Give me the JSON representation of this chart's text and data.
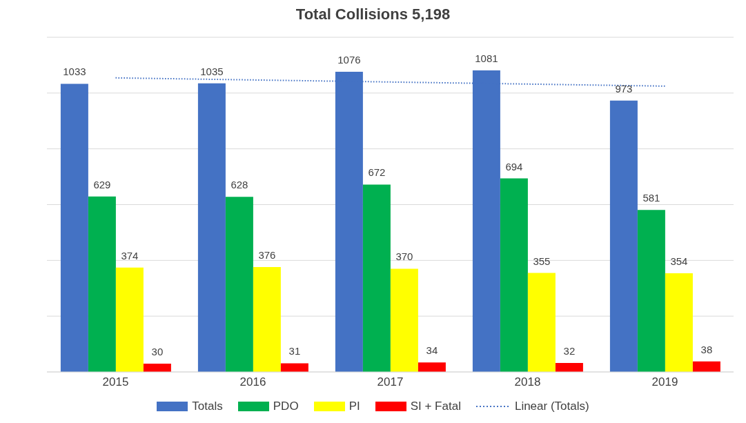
{
  "chart_data": {
    "type": "bar",
    "title": "Total Collisions 5,198",
    "categories": [
      "2015",
      "2016",
      "2017",
      "2018",
      "2019"
    ],
    "series": [
      {
        "name": "Totals",
        "color": "#4472c4",
        "values": [
          1033,
          1035,
          1076,
          1081,
          973
        ],
        "value_labels": [
          "1033",
          "1035",
          "1076",
          "1081",
          "973"
        ]
      },
      {
        "name": "PDO",
        "color": "#00b050",
        "values": [
          629,
          628,
          672,
          694,
          581
        ],
        "value_labels": [
          "629",
          "628",
          "672",
          "694",
          "581"
        ]
      },
      {
        "name": "PI",
        "color": "#ffff00",
        "values": [
          374,
          376,
          370,
          355,
          354
        ],
        "value_labels": [
          "374",
          "376",
          "370",
          "355",
          "354"
        ]
      },
      {
        "name": "SI + Fatal",
        "color": "#ff0000",
        "values": [
          30,
          31,
          34,
          32,
          38
        ],
        "value_labels": [
          "30",
          "31",
          "34",
          "32",
          "38"
        ]
      },
      {
        "name": "Linear (Totals)",
        "type": "line",
        "color": "#4472c4",
        "line_style": "dotted",
        "values": [
          1054.4,
          1047,
          1039.6,
          1032.2,
          1024.8
        ]
      }
    ],
    "ylim": [
      0,
      1200
    ],
    "yticks": [
      {
        "value": 0,
        "label": null
      },
      {
        "value": 200,
        "label": null
      },
      {
        "value": 400,
        "label": null
      },
      {
        "value": 600,
        "label": null
      },
      {
        "value": 800,
        "label": null
      },
      {
        "value": 1000,
        "label": null
      },
      {
        "value": 1200,
        "label": null
      }
    ],
    "grid": "y",
    "legend": "bottom"
  }
}
